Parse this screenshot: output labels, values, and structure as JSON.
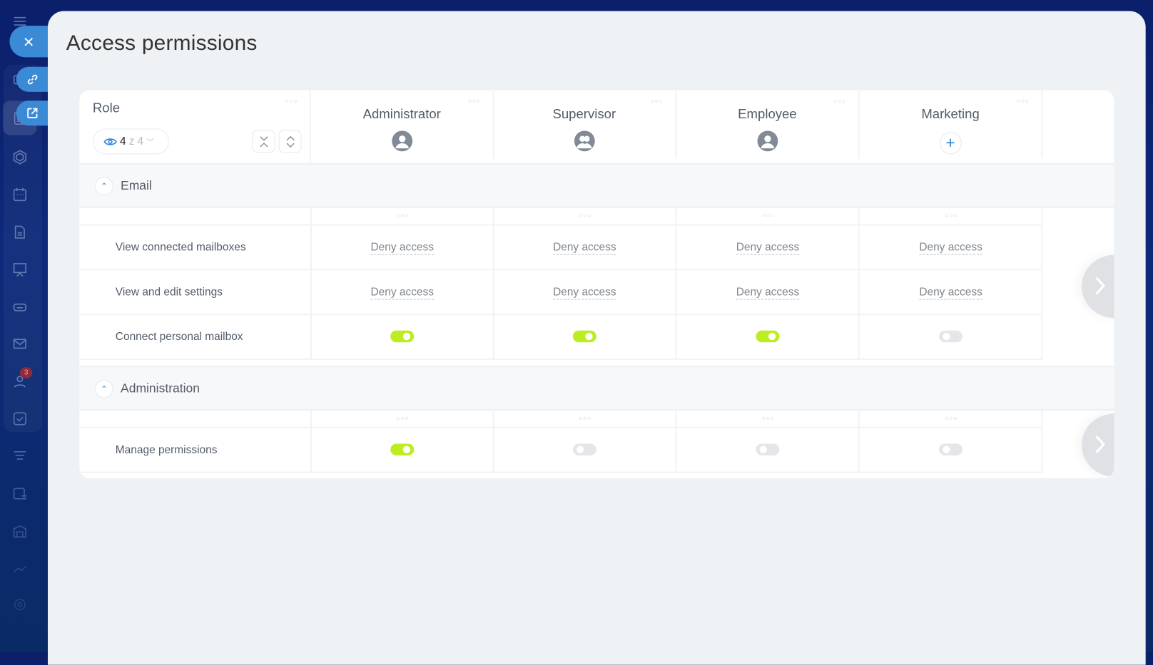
{
  "title": "Access permissions",
  "sidebar": {
    "icons": [
      "menu-icon",
      "chat-icon",
      "feed-icon",
      "hexagon-icon",
      "calendar-icon",
      "document-icon",
      "board-icon",
      "storage-icon",
      "mail-icon",
      "contacts-icon",
      "task-icon",
      "filter-icon",
      "schedule-icon",
      "warehouse-icon",
      "sign-icon",
      "settings-icon"
    ],
    "mail_badge": "3"
  },
  "floating": {
    "close": "close-icon",
    "link": "link-icon",
    "open": "external-link-icon"
  },
  "role_column": {
    "label": "Role",
    "visible_count": "4",
    "separator": "z",
    "total_count": "4"
  },
  "roles": [
    {
      "name": "Administrator",
      "icon": "user-icon"
    },
    {
      "name": "Supervisor",
      "icon": "users-icon"
    },
    {
      "name": "Employee",
      "icon": "user-icon"
    },
    {
      "name": "Marketing",
      "icon": "plus-icon"
    }
  ],
  "sections": [
    {
      "label": "Email",
      "rows": [
        {
          "label": "View connected mailboxes",
          "type": "select",
          "values": [
            "Deny access",
            "Deny access",
            "Deny access",
            "Deny access"
          ]
        },
        {
          "label": "View and edit settings",
          "type": "select",
          "values": [
            "Deny access",
            "Deny access",
            "Deny access",
            "Deny access"
          ]
        },
        {
          "label": "Connect personal mailbox",
          "type": "toggle",
          "values": [
            true,
            true,
            true,
            false
          ]
        }
      ]
    },
    {
      "label": "Administration",
      "rows": [
        {
          "label": "Manage permissions",
          "type": "toggle",
          "values": [
            true,
            false,
            false,
            false
          ]
        }
      ]
    }
  ],
  "colors": {
    "accent": "#2f80d6",
    "toggle_on": "#bbed21",
    "toggle_off": "#e4e6e9",
    "sidebar": "#0b1f6b"
  }
}
